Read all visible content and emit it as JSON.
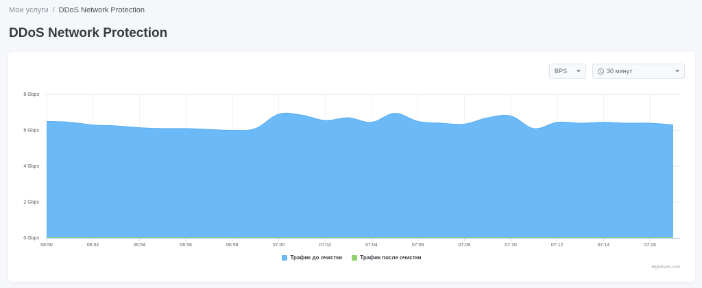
{
  "breadcrumb": {
    "parent": "Мои услуги",
    "separator": "/",
    "current": "DDoS Network Protection"
  },
  "page": {
    "title": "DDoS Network Protection"
  },
  "controls": {
    "metric": "BPS",
    "period": "30 минут"
  },
  "colors": {
    "before": "#6bb9f7",
    "after": "#8fd36e"
  },
  "chart_data": {
    "type": "area",
    "x": [
      "06:50",
      "06:51",
      "06:52",
      "06:53",
      "06:54",
      "06:55",
      "06:56",
      "06:57",
      "06:58",
      "06:59",
      "07:00",
      "07:01",
      "07:02",
      "07:03",
      "07:04",
      "07:05",
      "07:06",
      "07:07",
      "07:08",
      "07:09",
      "07:10",
      "07:11",
      "07:12",
      "07:13",
      "07:14",
      "07:15",
      "07:16",
      "07:17"
    ],
    "x_ticks": [
      "06:50",
      "06:52",
      "06:54",
      "06:56",
      "06:58",
      "07:00",
      "07:02",
      "07:04",
      "07:06",
      "07:08",
      "07:10",
      "07:12",
      "07:14",
      "07:16"
    ],
    "y_ticks": [
      "0 Gbps",
      "2 Gbps",
      "4 Gbps",
      "6 Gbps",
      "8 Gbps"
    ],
    "ylim": [
      0,
      8
    ],
    "series": [
      {
        "name": "Трафик до очистки",
        "values": [
          6.5,
          6.45,
          6.3,
          6.25,
          6.15,
          6.1,
          6.1,
          6.05,
          6.0,
          6.1,
          6.9,
          6.85,
          6.55,
          6.7,
          6.45,
          6.95,
          6.5,
          6.4,
          6.35,
          6.7,
          6.8,
          6.1,
          6.45,
          6.4,
          6.45,
          6.4,
          6.4,
          6.3
        ]
      },
      {
        "name": "Трафик после очистки",
        "values": [
          0.02,
          0.02,
          0.02,
          0.02,
          0.02,
          0.02,
          0.02,
          0.02,
          0.02,
          0.02,
          0.02,
          0.02,
          0.02,
          0.02,
          0.02,
          0.02,
          0.02,
          0.02,
          0.02,
          0.02,
          0.02,
          0.02,
          0.02,
          0.02,
          0.02,
          0.02,
          0.02,
          0.02
        ]
      }
    ]
  },
  "credits": "Highcharts.com"
}
